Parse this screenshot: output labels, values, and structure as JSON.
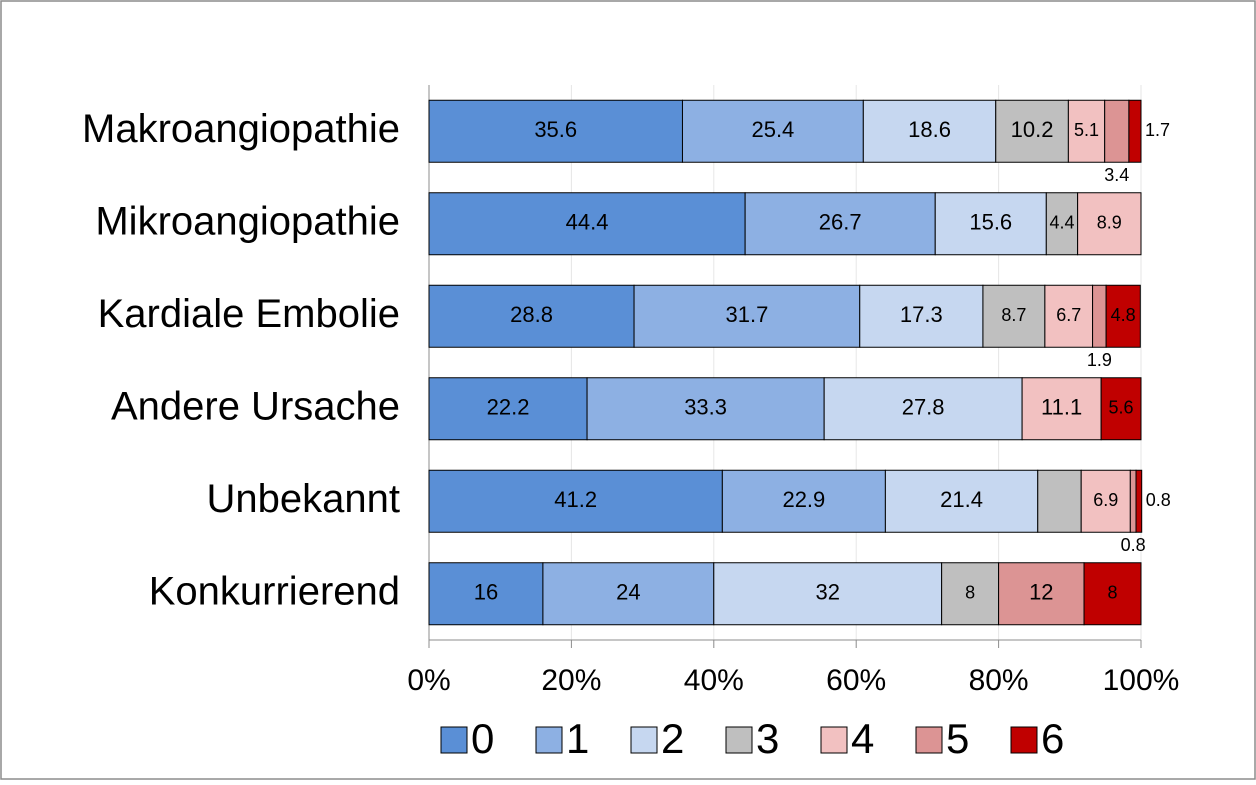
{
  "chart_data": {
    "type": "stacked-bar-horizontal",
    "categories": [
      "Makroangiopathie",
      "Mikroangiopathie",
      "Kardiale Embolie",
      "Andere Ursache",
      "Unbekannt",
      "Konkurrierend"
    ],
    "series": [
      {
        "name": "0",
        "color": "#5a8fd6",
        "values": [
          35.6,
          44.4,
          28.8,
          22.2,
          41.2,
          16
        ]
      },
      {
        "name": "1",
        "color": "#8db0e3",
        "values": [
          25.4,
          26.7,
          31.7,
          33.3,
          22.9,
          24
        ]
      },
      {
        "name": "2",
        "color": "#c6d7f0",
        "values": [
          18.6,
          15.6,
          17.3,
          27.8,
          21.4,
          32
        ]
      },
      {
        "name": "3",
        "color": "#bfbfbf",
        "values": [
          10.2,
          4.4,
          8.7,
          null,
          6.1,
          8
        ],
        "value_labels": [
          "10.2",
          "4.4",
          "8.7",
          null,
          null,
          "8"
        ]
      },
      {
        "name": "4",
        "color": "#f2c1c1",
        "values": [
          5.1,
          8.9,
          6.7,
          11.1,
          6.9,
          null
        ]
      },
      {
        "name": "5",
        "color": "#dc9494",
        "values": [
          3.4,
          null,
          1.9,
          null,
          0.8,
          12
        ]
      },
      {
        "name": "6",
        "color": "#c00000",
        "values": [
          1.7,
          null,
          4.8,
          5.6,
          0.8,
          8
        ]
      }
    ],
    "xlim": [
      0,
      100
    ],
    "xticks": [
      {
        "value": 0,
        "label": "0%"
      },
      {
        "value": 20,
        "label": "20%"
      },
      {
        "value": 40,
        "label": "40%"
      },
      {
        "value": 60,
        "label": "60%"
      },
      {
        "value": 80,
        "label": "80%"
      },
      {
        "value": 100,
        "label": "100%"
      }
    ],
    "grid": true,
    "legend": "bottom"
  }
}
